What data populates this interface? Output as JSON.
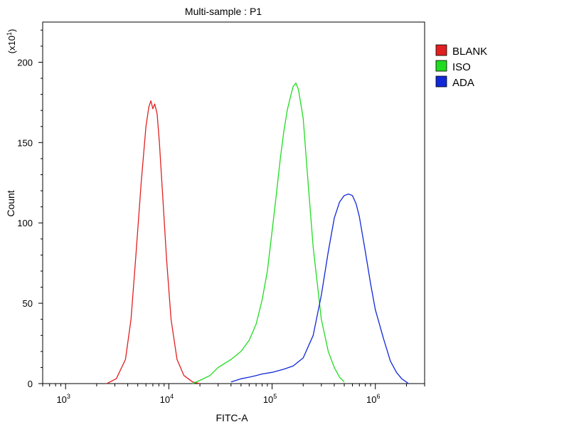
{
  "chart_data": {
    "type": "line",
    "title": "Multi-sample : P1",
    "xlabel": "FITC-A",
    "ylabel": "Count",
    "y_multiplier": {
      "base": "(x10",
      "exp": "1",
      "close": ")"
    },
    "x_scale": "log",
    "xlim": [
      600,
      3000000
    ],
    "ylim": [
      0,
      225
    ],
    "x_ticks": [
      {
        "value": 1000,
        "base": "10",
        "exp": "3"
      },
      {
        "value": 10000,
        "base": "10",
        "exp": "4"
      },
      {
        "value": 100000,
        "base": "10",
        "exp": "5"
      },
      {
        "value": 1000000,
        "base": "10",
        "exp": "6"
      }
    ],
    "y_ticks": [
      {
        "value": 0,
        "label": "0"
      },
      {
        "value": 50,
        "label": "50"
      },
      {
        "value": 100,
        "label": "100"
      },
      {
        "value": 150,
        "label": "150"
      },
      {
        "value": 200,
        "label": "200"
      }
    ],
    "grid": false,
    "legend_position": "right",
    "series": [
      {
        "name": "BLANK",
        "color": "#e02020",
        "x": [
          2500,
          3100,
          3800,
          4300,
          4800,
          5400,
          6000,
          6400,
          6700,
          7000,
          7300,
          7700,
          8100,
          8700,
          9500,
          10500,
          12000,
          14000,
          17000,
          20000
        ],
        "y": [
          0,
          3,
          15,
          40,
          80,
          125,
          160,
          172,
          176,
          171,
          174,
          168,
          150,
          118,
          78,
          40,
          15,
          5,
          1,
          0
        ]
      },
      {
        "name": "ISO",
        "color": "#20dc20",
        "x": [
          17000,
          20000,
          25000,
          30000,
          40000,
          50000,
          60000,
          70000,
          80000,
          90000,
          100000,
          110000,
          120000,
          130000,
          140000,
          150000,
          160000,
          170000,
          180000,
          200000,
          220000,
          250000,
          300000,
          350000,
          400000,
          450000,
          500000
        ],
        "y": [
          0,
          2,
          5,
          10,
          15,
          20,
          27,
          37,
          52,
          70,
          95,
          118,
          140,
          157,
          170,
          178,
          185,
          187,
          183,
          165,
          130,
          85,
          40,
          20,
          10,
          4,
          1
        ]
      },
      {
        "name": "ADA",
        "color": "#1028d8",
        "x": [
          40000,
          50000,
          60000,
          70000,
          80000,
          100000,
          130000,
          160000,
          200000,
          250000,
          300000,
          350000,
          400000,
          450000,
          500000,
          550000,
          600000,
          650000,
          700000,
          800000,
          900000,
          1000000,
          1200000,
          1400000,
          1600000,
          1800000,
          2100000
        ],
        "y": [
          1,
          3,
          4,
          5,
          6,
          7,
          9,
          11,
          16,
          30,
          55,
          82,
          103,
          113,
          117,
          118,
          117,
          112,
          104,
          82,
          62,
          46,
          28,
          14,
          7,
          3,
          0
        ]
      }
    ]
  }
}
